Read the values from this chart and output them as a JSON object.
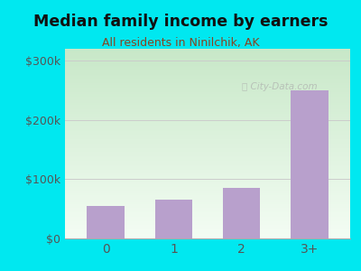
{
  "title": "Median family income by earners",
  "subtitle": "All residents in Ninilchik, AK",
  "categories": [
    "0",
    "1",
    "2",
    "3+"
  ],
  "values": [
    55000,
    65000,
    85000,
    250000
  ],
  "bar_color": "#b8a0cc",
  "ylim": [
    0,
    320000
  ],
  "yticks": [
    0,
    100000,
    200000,
    300000
  ],
  "ytick_labels": [
    "$0",
    "$100k",
    "$200k",
    "$300k"
  ],
  "background_outer": "#00e8f0",
  "plot_bg_topleft": "#c8e8c8",
  "plot_bg_bottomright": "#f4fdf4",
  "title_color": "#111111",
  "subtitle_color": "#884422",
  "tick_color": "#555555",
  "grid_color": "#cccccc",
  "watermark": "City-Data.com",
  "figsize": [
    4.0,
    3.0
  ],
  "dpi": 100
}
